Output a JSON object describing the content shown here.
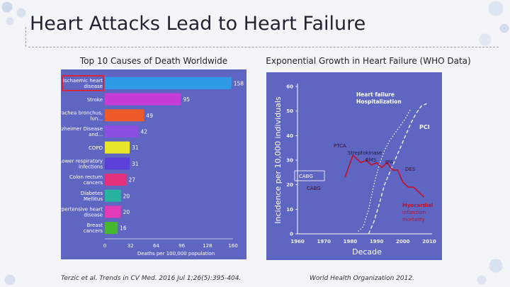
{
  "slide": {
    "title": "Heart Attacks Lead to Heart Failure",
    "left_subtitle": "Top 10 Causes of Death Worldwide",
    "right_subtitle": "Exponential Growth in Heart Failure (WHO Data)",
    "left_citation": "Terzic et al. Trends in CV Med. 2016 Jul 1;26(5):395-404.",
    "right_citation": "World Health Organization 2012."
  },
  "colors": {
    "panel": "#5f66c2",
    "highlight_box": "#e0202a",
    "heart_failure_line": "#f0f0f0",
    "mi_line": "#c0102a"
  },
  "chart_data": [
    {
      "type": "bar",
      "orientation": "horizontal",
      "categories": [
        "Ischaemic heart disease",
        "Stroke",
        "Trachea bronchus, lun...",
        "Alzheimer Disease and...",
        "COPD",
        "Lower respiratory infections",
        "Colon rectum cancers",
        "Diabetes Mellitus",
        "Hypertensive heart disease",
        "Breast cancers"
      ],
      "values": [
        158,
        95,
        49,
        42,
        31,
        31,
        27,
        20,
        20,
        16
      ],
      "bar_colors": [
        "#2f9be6",
        "#c83cd6",
        "#ef5a2a",
        "#8a4fe0",
        "#e6e62a",
        "#5a3fd8",
        "#e2317a",
        "#27b3a0",
        "#e23bb8",
        "#46b82f"
      ],
      "highlighted": "Ischaemic heart disease",
      "xlabel": "Deaths per 100,000 population",
      "xticks": [
        0,
        32,
        64,
        96,
        128,
        160
      ],
      "xlim": [
        0,
        160
      ]
    },
    {
      "type": "line",
      "xlabel": "Decade",
      "ylabel": "Incidence per 10,000 individuals",
      "xticks": [
        1960,
        1970,
        1980,
        1990,
        2000,
        2010
      ],
      "yticks": [
        0,
        10,
        20,
        30,
        40,
        50,
        60
      ],
      "ylim": [
        0,
        60
      ],
      "xlim": [
        1960,
        2010
      ],
      "series": [
        {
          "name": "Heart failure Hospitalization",
          "style": "dotted",
          "x": [
            1983,
            1985,
            1987,
            1989,
            1991,
            1993,
            1995,
            1997,
            1999,
            2001,
            2003
          ],
          "y": [
            1,
            3,
            10,
            20,
            28,
            34,
            38,
            41,
            44,
            47,
            51
          ]
        },
        {
          "name": "PCI",
          "style": "dashed",
          "x": [
            1987,
            1989,
            1991,
            1993,
            1995,
            1997,
            1999,
            2001,
            2003,
            2005,
            2007,
            2009
          ],
          "y": [
            0,
            5,
            12,
            20,
            25,
            30,
            35,
            40,
            45,
            49,
            52,
            53
          ]
        },
        {
          "name": "Myocardial infarction mortality",
          "style": "solid",
          "x": [
            1978,
            1980,
            1981,
            1984,
            1986,
            1988,
            1990,
            1992,
            1994,
            1996,
            1998,
            2000,
            2002,
            2004,
            2006,
            2008
          ],
          "y": [
            23,
            29,
            32,
            29,
            30,
            28,
            29,
            27,
            29,
            26,
            26,
            21,
            19,
            19,
            17,
            15
          ]
        }
      ],
      "annotations": [
        "PTCA",
        "Streptokinase",
        "BMS",
        "tPA",
        "DES",
        "CABG",
        "CABG"
      ]
    }
  ]
}
